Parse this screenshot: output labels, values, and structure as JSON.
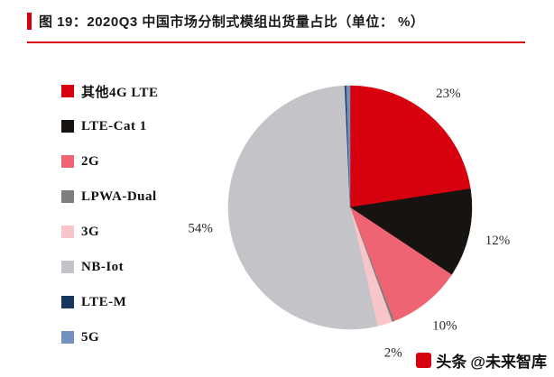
{
  "header": {
    "title": "图 19：2020Q3 中国市场分制式模组出货量占比（单位： %）",
    "accent_color": "#d7000f"
  },
  "chart_data": {
    "type": "pie",
    "title": "2020Q3 中国市场分制式模组出货量占比",
    "unit": "%",
    "legend_position": "left",
    "start_angle_deg": -90,
    "direction": "clockwise",
    "series": [
      {
        "name": "其他4G LTE",
        "value": 23,
        "label": "23%",
        "color": "#d7000f"
      },
      {
        "name": "LTE-Cat 1",
        "value": 12,
        "label": "12%",
        "color": "#171310"
      },
      {
        "name": "2G",
        "value": 10,
        "label": "10%",
        "color": "#ee6472"
      },
      {
        "name": "LPWA-Dual",
        "value": 0.3,
        "label": "",
        "color": "#7f7f7f"
      },
      {
        "name": "3G",
        "value": 2,
        "label": "2%",
        "color": "#f8c6ca"
      },
      {
        "name": "NB-Iot",
        "value": 54,
        "label": "54%",
        "color": "#c4c4c8"
      },
      {
        "name": "LTE-M",
        "value": 0.2,
        "label": "",
        "color": "#16365c"
      },
      {
        "name": "5G",
        "value": 0.5,
        "label": "",
        "color": "#7291c0"
      }
    ]
  },
  "footer": {
    "brand": "头条",
    "handle": "@未来智库",
    "brand_color": "#d7000f"
  }
}
